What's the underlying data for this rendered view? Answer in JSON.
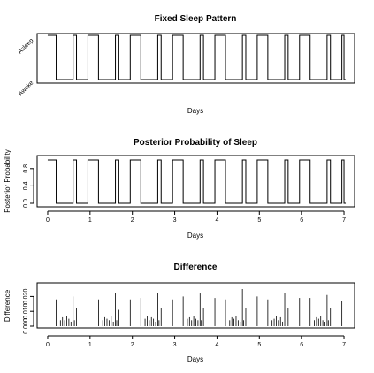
{
  "chart_data": [
    {
      "type": "line",
      "title": "Fixed Sleep Pattern",
      "xlabel": "Days",
      "ylabel": "",
      "xlim": [
        -0.25,
        7.25
      ],
      "ylim": [
        0,
        1
      ],
      "y_tick_labels": [
        "Asleep",
        "Awake"
      ],
      "x_axis_ticks_shown": false,
      "series": [
        {
          "step_x": [
            0,
            0.2,
            0.6,
            0.68,
            0.95,
            1.2,
            1.6,
            1.68,
            1.95,
            2.2,
            2.6,
            2.68,
            2.95,
            3.2,
            3.6,
            3.68,
            3.95,
            4.2,
            4.6,
            4.68,
            4.95,
            5.2,
            5.6,
            5.68,
            5.95,
            6.2,
            6.6,
            6.68,
            6.95,
            7.0
          ],
          "step_y": [
            1,
            0,
            1,
            0,
            1,
            0,
            1,
            0,
            1,
            0,
            1,
            0,
            1,
            0,
            1,
            0,
            1,
            0,
            1,
            0,
            1,
            0,
            1,
            0,
            1,
            0,
            1,
            0,
            1,
            0
          ]
        }
      ]
    },
    {
      "type": "line",
      "title": "Posterior Probability of Sleep",
      "xlabel": "Days",
      "ylabel": "Posterior Probability",
      "xlim": [
        -0.25,
        7.25
      ],
      "ylim": [
        0,
        1
      ],
      "x_ticks": [
        0,
        1,
        2,
        3,
        4,
        5,
        6,
        7
      ],
      "y_ticks": [
        0.0,
        0.4,
        0.8
      ],
      "y_tick_labels": [
        "0.0",
        "0.4",
        "0.8"
      ],
      "series": [
        {
          "step_x": [
            0,
            0.2,
            0.6,
            0.68,
            0.95,
            1.2,
            1.6,
            1.68,
            1.95,
            2.2,
            2.6,
            2.68,
            2.95,
            3.2,
            3.6,
            3.68,
            3.95,
            4.2,
            4.6,
            4.68,
            4.95,
            5.2,
            5.6,
            5.68,
            5.95,
            6.2,
            6.6,
            6.68,
            6.95,
            7.0
          ],
          "step_y": [
            1,
            0,
            1,
            0,
            1,
            0,
            1,
            0,
            1,
            0,
            1,
            0,
            1,
            0,
            1,
            0,
            1,
            0,
            1,
            0,
            1,
            0,
            1,
            0,
            1,
            0,
            1,
            0,
            1,
            0
          ]
        }
      ]
    },
    {
      "type": "bar",
      "title": "Difference",
      "xlabel": "Days",
      "ylabel": "Difference",
      "xlim": [
        -0.25,
        7.25
      ],
      "ylim": [
        0,
        0.025
      ],
      "x_ticks": [
        0,
        1,
        2,
        3,
        4,
        5,
        6,
        7
      ],
      "y_ticks": [
        0.0,
        0.01,
        0.02
      ],
      "y_tick_labels": [
        "0.000",
        "0.010",
        "0.020"
      ],
      "series": [
        {
          "x": [
            0.2,
            0.3,
            0.35,
            0.4,
            0.45,
            0.5,
            0.55,
            0.6,
            0.63,
            0.68,
            0.95,
            1.2,
            1.3,
            1.35,
            1.4,
            1.45,
            1.5,
            1.55,
            1.6,
            1.63,
            1.68,
            1.95,
            2.2,
            2.3,
            2.35,
            2.4,
            2.45,
            2.5,
            2.55,
            2.6,
            2.63,
            2.68,
            2.95,
            3.2,
            3.3,
            3.35,
            3.4,
            3.45,
            3.5,
            3.55,
            3.6,
            3.63,
            3.68,
            3.95,
            4.2,
            4.3,
            4.35,
            4.4,
            4.45,
            4.5,
            4.55,
            4.6,
            4.63,
            4.68,
            4.95,
            5.2,
            5.3,
            5.35,
            5.4,
            5.45,
            5.5,
            5.55,
            5.6,
            5.63,
            5.68,
            5.95,
            6.2,
            6.3,
            6.35,
            6.4,
            6.45,
            6.5,
            6.55,
            6.6,
            6.63,
            6.68,
            6.95
          ],
          "values": [
            0.018,
            0.004,
            0.006,
            0.004,
            0.007,
            0.005,
            0.003,
            0.02,
            0.004,
            0.012,
            0.022,
            0.018,
            0.004,
            0.006,
            0.005,
            0.004,
            0.007,
            0.003,
            0.022,
            0.004,
            0.011,
            0.018,
            0.019,
            0.005,
            0.007,
            0.004,
            0.006,
            0.005,
            0.003,
            0.022,
            0.004,
            0.012,
            0.018,
            0.02,
            0.005,
            0.006,
            0.004,
            0.007,
            0.005,
            0.004,
            0.022,
            0.004,
            0.012,
            0.019,
            0.018,
            0.004,
            0.006,
            0.005,
            0.007,
            0.004,
            0.003,
            0.025,
            0.004,
            0.012,
            0.02,
            0.018,
            0.004,
            0.005,
            0.007,
            0.004,
            0.006,
            0.003,
            0.022,
            0.004,
            0.012,
            0.019,
            0.019,
            0.004,
            0.006,
            0.005,
            0.007,
            0.004,
            0.003,
            0.021,
            0.004,
            0.012,
            0.017
          ]
        }
      ]
    }
  ]
}
